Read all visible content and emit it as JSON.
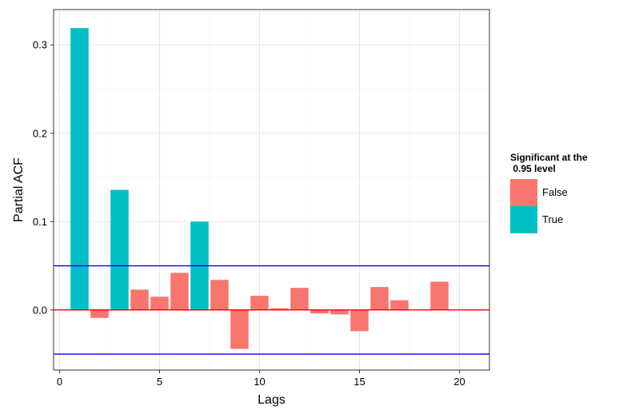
{
  "chart_data": {
    "type": "bar",
    "xlabel": "Lags",
    "ylabel": "Partial ACF",
    "xlim": [
      -0.3,
      21.5
    ],
    "ylim": [
      -0.068,
      0.34
    ],
    "x_ticks": [
      0,
      5,
      10,
      15,
      20
    ],
    "x_tick_labels": [
      "0",
      "5",
      "10",
      "15",
      "20"
    ],
    "y_ticks": [
      0.0,
      0.1,
      0.2,
      0.3
    ],
    "y_tick_labels": [
      "0.0",
      "0.1",
      "0.2",
      "0.3"
    ],
    "grid": true,
    "bar_width": 0.9,
    "reference_lines": [
      {
        "value": 0.05,
        "color": "#0000ff"
      },
      {
        "value": -0.05,
        "color": "#0000ff"
      },
      {
        "value": 0.0,
        "color": "#ff0000"
      }
    ],
    "legend": {
      "title_lines": [
        "Significant at the",
        " 0.95 level"
      ],
      "placement": "right",
      "entries": [
        {
          "label": "False",
          "color": "#f8766d"
        },
        {
          "label": "True",
          "color": "#00bfc4"
        }
      ]
    },
    "series": [
      {
        "group": "False",
        "color": "#f8766d",
        "x": [
          2,
          4,
          5,
          6,
          8,
          9,
          10,
          11,
          12,
          13,
          14,
          15,
          16,
          17,
          19
        ],
        "values": [
          -0.009,
          0.023,
          0.015,
          0.042,
          0.034,
          -0.044,
          0.016,
          0.002,
          0.025,
          -0.004,
          -0.005,
          -0.024,
          0.026,
          0.011,
          0.032
        ]
      },
      {
        "group": "True",
        "color": "#00bfc4",
        "x": [
          1,
          3,
          7
        ],
        "values": [
          0.319,
          0.136,
          0.1
        ]
      }
    ]
  }
}
